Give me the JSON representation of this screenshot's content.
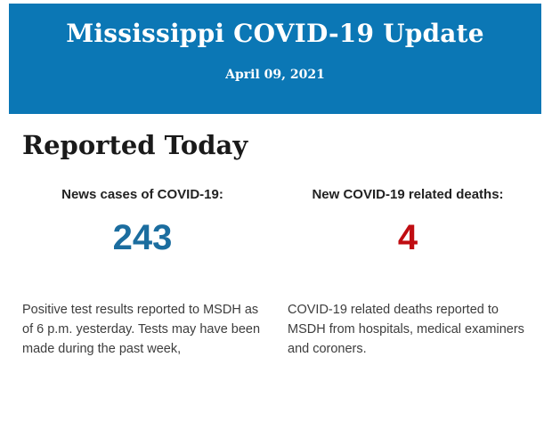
{
  "banner": {
    "title": "Mississippi COVID-19 Update",
    "date": "April 09, 2021",
    "background": "#0b77b5",
    "text_color": "#ffffff"
  },
  "section": {
    "heading": "Reported Today"
  },
  "stats": [
    {
      "label": "News cases of COVID-19:",
      "value": "243",
      "value_color": "#1b6d9f",
      "description": "Positive test results reported to MSDH as of 6 p.m. yesterday. Tests may have been made during the past week,"
    },
    {
      "label": "New COVID-19 related deaths:",
      "value": "4",
      "value_color": "#c00d12",
      "description": "COVID-19 related deaths reported to MSDH from hospitals, medical examiners and coroners."
    }
  ]
}
